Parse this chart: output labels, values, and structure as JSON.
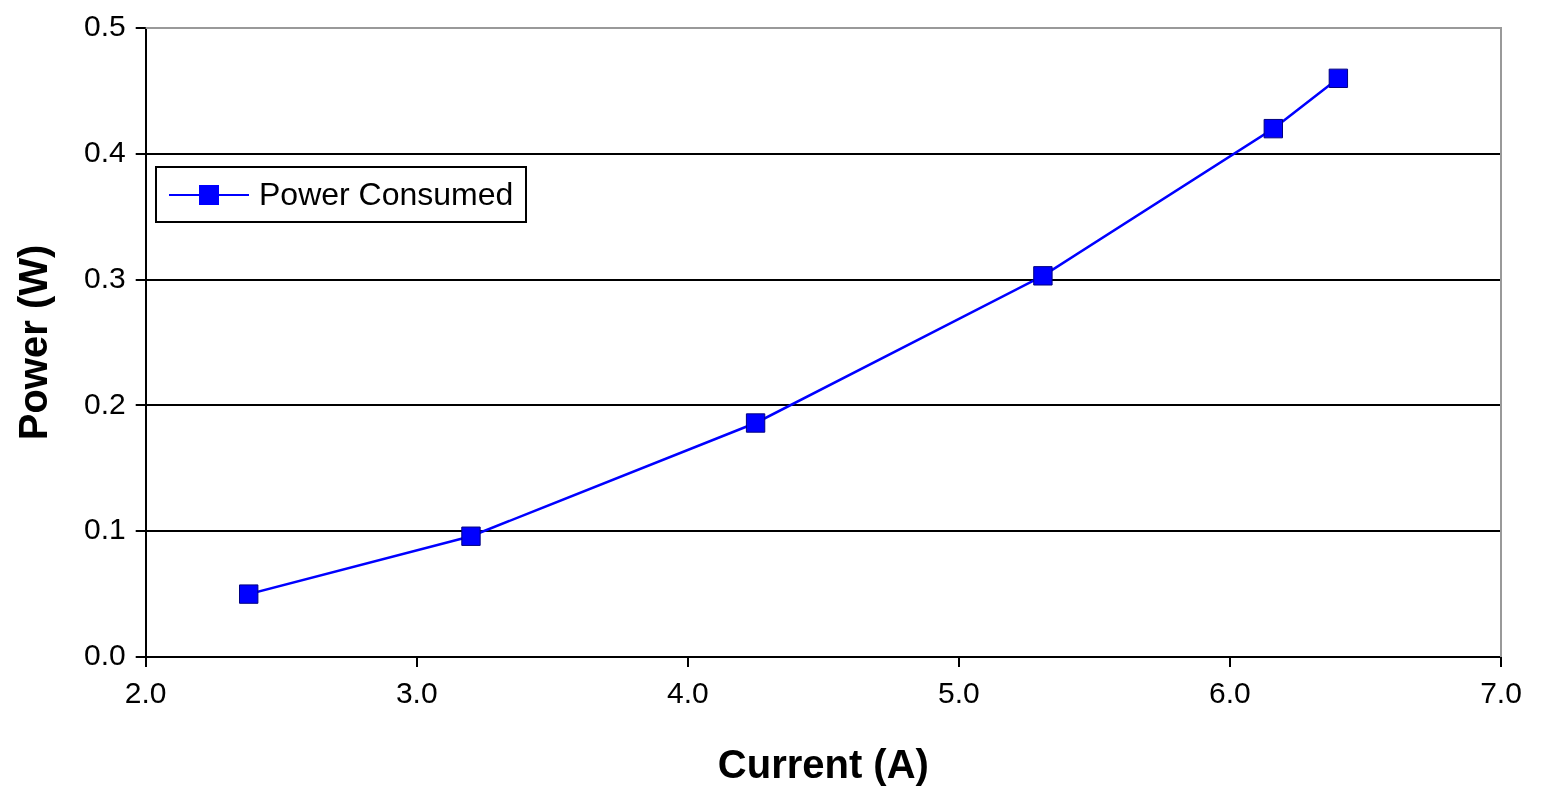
{
  "chart_data": {
    "type": "line",
    "xlabel": "Current (A)",
    "ylabel": "Power (W)",
    "x": [
      2.38,
      3.2,
      4.25,
      5.31,
      6.16,
      6.4
    ],
    "series": [
      {
        "name": "Power Consumed",
        "color": "#0000ff",
        "values": [
          0.05,
          0.096,
          0.186,
          0.303,
          0.42,
          0.46
        ]
      }
    ],
    "xlim": [
      2.0,
      7.0
    ],
    "xticks": [
      {
        "value": 2,
        "label": "2.0"
      },
      {
        "value": 3,
        "label": "3.0"
      },
      {
        "value": 4,
        "label": "4.0"
      },
      {
        "value": 5,
        "label": "5.0"
      },
      {
        "value": 6,
        "label": "6.0"
      },
      {
        "value": 7,
        "label": "7.0"
      }
    ],
    "ylim": [
      0,
      0.5
    ],
    "yticks": [
      {
        "value": 0,
        "label": "0.0"
      },
      0.1,
      0.2,
      0.3,
      0.4,
      0.5
    ],
    "grid": "y",
    "legend": "top left",
    "marker": "square",
    "line_style": "solid"
  }
}
